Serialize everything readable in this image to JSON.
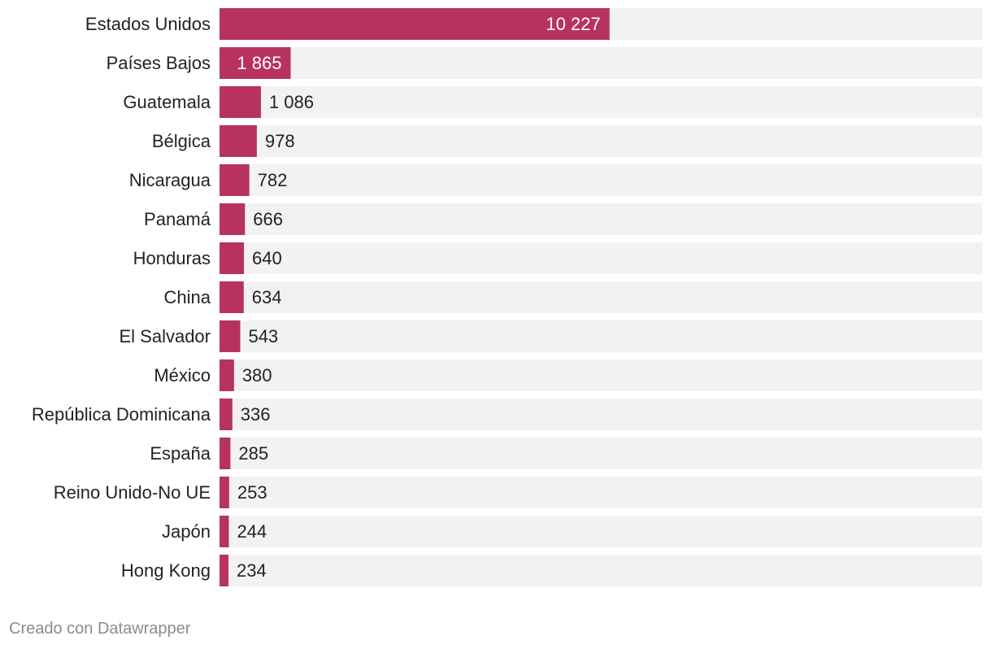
{
  "chart_data": {
    "type": "bar",
    "orientation": "horizontal",
    "categories": [
      "Estados Unidos",
      "Países Bajos",
      "Guatemala",
      "Bélgica",
      "Nicaragua",
      "Panamá",
      "Honduras",
      "China",
      "El Salvador",
      "México",
      "República Dominicana",
      "España",
      "Reino Unido-No UE",
      "Japón",
      "Hong Kong"
    ],
    "values": [
      10227,
      1865,
      1086,
      978,
      782,
      666,
      640,
      634,
      543,
      380,
      336,
      285,
      253,
      244,
      234
    ],
    "value_labels": [
      "10 227",
      "1 865",
      "1 086",
      "978",
      "782",
      "666",
      "640",
      "634",
      "543",
      "380",
      "336",
      "285",
      "253",
      "244",
      "234"
    ],
    "xlim": [
      0,
      20000
    ],
    "grid": false,
    "legend": "none",
    "colors": {
      "bar": "#b8325e",
      "track": "#f2f2f2",
      "label_inside": "#ffffff",
      "label_outside": "#222222",
      "category_label": "#222222"
    }
  },
  "footer": {
    "credit": "Creado con Datawrapper"
  }
}
